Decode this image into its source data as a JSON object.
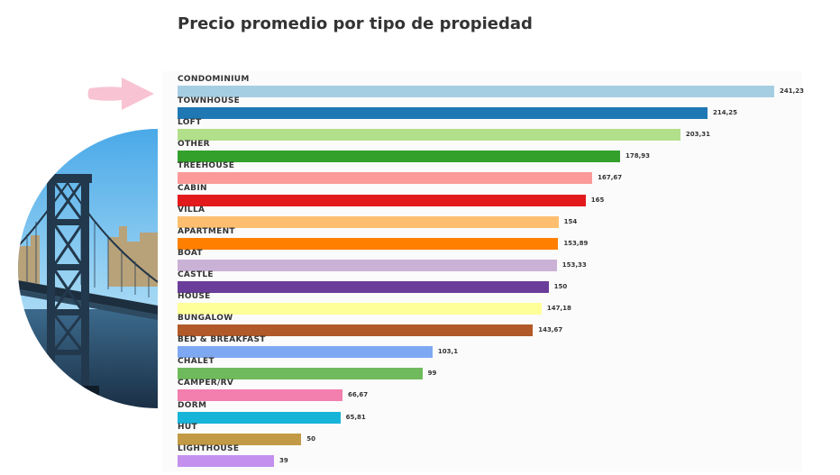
{
  "chart_data": {
    "type": "bar",
    "orientation": "horizontal",
    "title": "Precio promedio por tipo de propiedad",
    "xlabel": "",
    "ylabel": "",
    "grid": false,
    "categories": [
      "CONDOMINIUM",
      "TOWNHOUSE",
      "LOFT",
      "OTHER",
      "TREEHOUSE",
      "CABIN",
      "VILLA",
      "APARTMENT",
      "BOAT",
      "CASTLE",
      "HOUSE",
      "BUNGALOW",
      "BED & BREAKFAST",
      "CHALET",
      "CAMPER/RV",
      "DORM",
      "HUT",
      "LIGHTHOUSE"
    ],
    "values": [
      241.23,
      214.25,
      203.31,
      178.93,
      167.67,
      165,
      154,
      153.89,
      153.33,
      150,
      147.18,
      143.67,
      103.1,
      99,
      66.67,
      65.81,
      50,
      39
    ],
    "value_labels": [
      "241,23",
      "214,25",
      "203,31",
      "178,93",
      "167,67",
      "165",
      "154",
      "153,89",
      "153,33",
      "150",
      "147,18",
      "143,67",
      "103,1",
      "99",
      "66,67",
      "65,81",
      "50",
      "39"
    ],
    "colors": [
      "#a6cee3",
      "#1f78b4",
      "#b2df8a",
      "#33a02c",
      "#fb9a99",
      "#e31a1c",
      "#fdbf6f",
      "#ff7f00",
      "#cab2d6",
      "#6a3d9a",
      "#ffff99",
      "#b15928",
      "#7fa8f2",
      "#6fba5c",
      "#f27fad",
      "#17b4d9",
      "#c29a45",
      "#c490ee"
    ]
  },
  "decor": {
    "arrow_color": "#f8c3d2",
    "photo": "bridge-photo",
    "icon": "pointer-arrow-icon"
  }
}
